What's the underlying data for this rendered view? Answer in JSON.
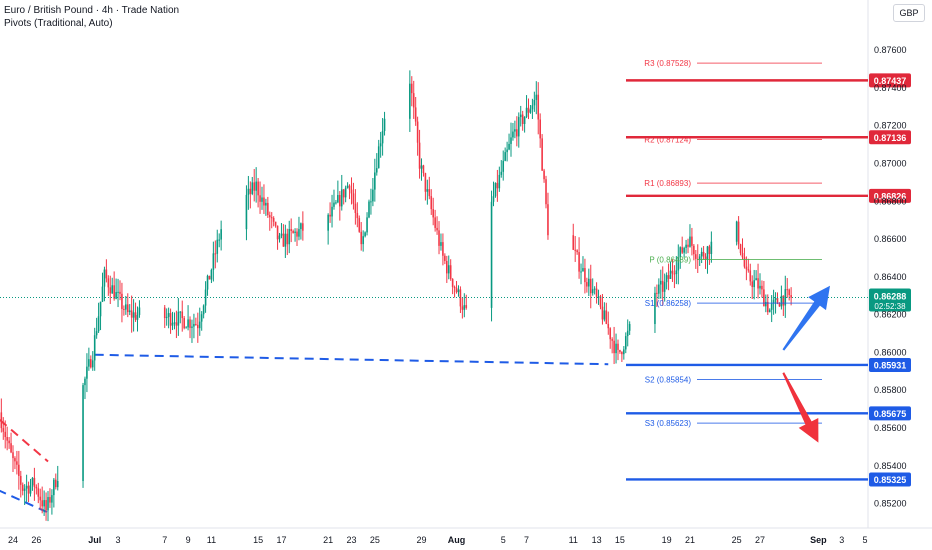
{
  "header": {
    "title": "Euro / British Pound · 4h · Trade Nation",
    "indicator": "Pivots (Traditional, Auto)"
  },
  "currency_badge": "GBP",
  "colors": {
    "bull": "#089981",
    "bear": "#f23645",
    "resistance": "#e0283a",
    "support": "#1e5be6",
    "pivot": "#4caf50",
    "last_price_bg": "#089981",
    "arrow_up": "#2f74f0",
    "arrow_down": "#f0323c"
  },
  "chart_data": {
    "type": "candlestick",
    "symbol": "EURGBP",
    "timeframe": "4h",
    "ylim": [
      0.851,
      0.8782
    ],
    "y_ticks": [
      "0.87600",
      "0.87400",
      "0.87200",
      "0.87000",
      "0.86800",
      "0.86600",
      "0.86400",
      "0.86200",
      "0.86000",
      "0.85800",
      "0.85600",
      "0.85400",
      "0.85200"
    ],
    "x_ticks": [
      {
        "label": "24",
        "date": "2025-06-24"
      },
      {
        "label": "26",
        "date": "2025-06-26"
      },
      {
        "label": "Jul",
        "date": "2025-07-01"
      },
      {
        "label": "3",
        "date": "2025-07-03"
      },
      {
        "label": "7",
        "date": "2025-07-07"
      },
      {
        "label": "9",
        "date": "2025-07-09"
      },
      {
        "label": "11",
        "date": "2025-07-11"
      },
      {
        "label": "15",
        "date": "2025-07-15"
      },
      {
        "label": "17",
        "date": "2025-07-17"
      },
      {
        "label": "21",
        "date": "2025-07-21"
      },
      {
        "label": "23",
        "date": "2025-07-23"
      },
      {
        "label": "25",
        "date": "2025-07-25"
      },
      {
        "label": "29",
        "date": "2025-07-29"
      },
      {
        "label": "Aug",
        "date": "2025-08-01"
      },
      {
        "label": "5",
        "date": "2025-08-05"
      },
      {
        "label": "7",
        "date": "2025-08-07"
      },
      {
        "label": "11",
        "date": "2025-08-11"
      },
      {
        "label": "13",
        "date": "2025-08-13"
      },
      {
        "label": "15",
        "date": "2025-08-15"
      },
      {
        "label": "19",
        "date": "2025-08-19"
      },
      {
        "label": "21",
        "date": "2025-08-21"
      },
      {
        "label": "25",
        "date": "2025-08-25"
      },
      {
        "label": "27",
        "date": "2025-08-27"
      },
      {
        "label": "Sep",
        "date": "2025-09-01"
      },
      {
        "label": "3",
        "date": "2025-09-03"
      },
      {
        "label": "5",
        "date": "2025-09-05"
      }
    ],
    "waypoints": [
      {
        "date": "2025-06-23",
        "price": 0.8568
      },
      {
        "date": "2025-06-24",
        "price": 0.8545
      },
      {
        "date": "2025-06-25",
        "price": 0.8528
      },
      {
        "date": "2025-06-26",
        "price": 0.853
      },
      {
        "date": "2025-06-27",
        "price": 0.8516
      },
      {
        "date": "2025-06-29",
        "price": 0.8555
      },
      {
        "date": "2025-07-01",
        "price": 0.86
      },
      {
        "date": "2025-07-02",
        "price": 0.864
      },
      {
        "date": "2025-07-04",
        "price": 0.862
      },
      {
        "date": "2025-07-08",
        "price": 0.8618
      },
      {
        "date": "2025-07-10",
        "price": 0.8615
      },
      {
        "date": "2025-07-12",
        "price": 0.8665
      },
      {
        "date": "2025-07-15",
        "price": 0.8688
      },
      {
        "date": "2025-07-17",
        "price": 0.8658
      },
      {
        "date": "2025-07-19",
        "price": 0.8665
      },
      {
        "date": "2025-07-21",
        "price": 0.8668
      },
      {
        "date": "2025-07-23",
        "price": 0.869
      },
      {
        "date": "2025-07-24",
        "price": 0.8655
      },
      {
        "date": "2025-07-26",
        "price": 0.8725
      },
      {
        "date": "2025-07-28",
        "price": 0.8753
      },
      {
        "date": "2025-07-29",
        "price": 0.87
      },
      {
        "date": "2025-07-31",
        "price": 0.865
      },
      {
        "date": "2025-08-02",
        "price": 0.862
      },
      {
        "date": "2025-08-04",
        "price": 0.8675
      },
      {
        "date": "2025-08-06",
        "price": 0.8715
      },
      {
        "date": "2025-08-08",
        "price": 0.8735
      },
      {
        "date": "2025-08-09",
        "price": 0.8665
      },
      {
        "date": "2025-08-11",
        "price": 0.8655
      },
      {
        "date": "2025-08-13",
        "price": 0.863
      },
      {
        "date": "2025-08-14",
        "price": 0.8615
      },
      {
        "date": "2025-08-15",
        "price": 0.8598
      },
      {
        "date": "2025-08-17",
        "price": 0.8625
      },
      {
        "date": "2025-08-19",
        "price": 0.8635
      },
      {
        "date": "2025-08-21",
        "price": 0.866
      },
      {
        "date": "2025-08-22",
        "price": 0.865
      },
      {
        "date": "2025-08-25",
        "price": 0.867
      },
      {
        "date": "2025-08-26",
        "price": 0.864
      },
      {
        "date": "2025-08-27",
        "price": 0.8635
      },
      {
        "date": "2025-08-28",
        "price": 0.8622
      },
      {
        "date": "2025-08-29",
        "price": 0.8629
      }
    ],
    "horizontal_levels": [
      {
        "price": 0.87437,
        "label": "0.87437",
        "side": "resistance"
      },
      {
        "price": 0.87136,
        "label": "0.87136",
        "side": "resistance"
      },
      {
        "price": 0.86826,
        "label": "0.86826",
        "side": "resistance"
      },
      {
        "price": 0.85931,
        "label": "0.85931",
        "side": "support"
      },
      {
        "price": 0.85675,
        "label": "0.85675",
        "side": "support"
      },
      {
        "price": 0.85325,
        "label": "0.85325",
        "side": "support"
      }
    ],
    "pivots": [
      {
        "name": "R3",
        "text": "R3 (0.87528)",
        "price": 0.87528,
        "kind": "resistance"
      },
      {
        "name": "R2",
        "text": "R2 (0.87124)",
        "price": 0.87124,
        "kind": "resistance"
      },
      {
        "name": "R1",
        "text": "R1 (0.86893)",
        "price": 0.86893,
        "kind": "resistance"
      },
      {
        "name": "P",
        "text": "P (0.86489)",
        "price": 0.86489,
        "kind": "pivot"
      },
      {
        "name": "S1",
        "text": "S1 (0.86258)",
        "price": 0.86258,
        "kind": "support"
      },
      {
        "name": "S2",
        "text": "S2 (0.85854)",
        "price": 0.85854,
        "kind": "support"
      },
      {
        "name": "S3",
        "text": "S3 (0.85623)",
        "price": 0.85623,
        "kind": "support"
      }
    ],
    "last_price": {
      "price": 0.86288,
      "label": "0.86288",
      "countdown": "02:52:38"
    },
    "trendlines": [
      {
        "style": "dashed",
        "color_key": "support",
        "from": {
          "date": "2025-07-01",
          "price": 0.85985
        },
        "to": {
          "date": "2025-08-14",
          "price": 0.85935
        }
      },
      {
        "style": "dashed",
        "color_key": "bear",
        "from": {
          "date": "2025-06-18",
          "price": 0.859
        },
        "to": {
          "date": "2025-06-27",
          "price": 0.8542
        }
      },
      {
        "style": "dashed",
        "color_key": "support",
        "from": {
          "date": "2025-06-18",
          "price": 0.854
        },
        "to": {
          "date": "2025-06-27",
          "price": 0.8515
        }
      }
    ],
    "arrows": [
      {
        "direction": "up",
        "color_key": "arrow_up",
        "from": {
          "date": "2025-08-29",
          "price": 0.8601
        },
        "to": {
          "date": "2025-09-02",
          "price": 0.8635
        }
      },
      {
        "direction": "down",
        "color_key": "arrow_down",
        "from": {
          "date": "2025-08-29",
          "price": 0.8589
        },
        "to": {
          "date": "2025-09-01",
          "price": 0.8552
        }
      }
    ]
  }
}
